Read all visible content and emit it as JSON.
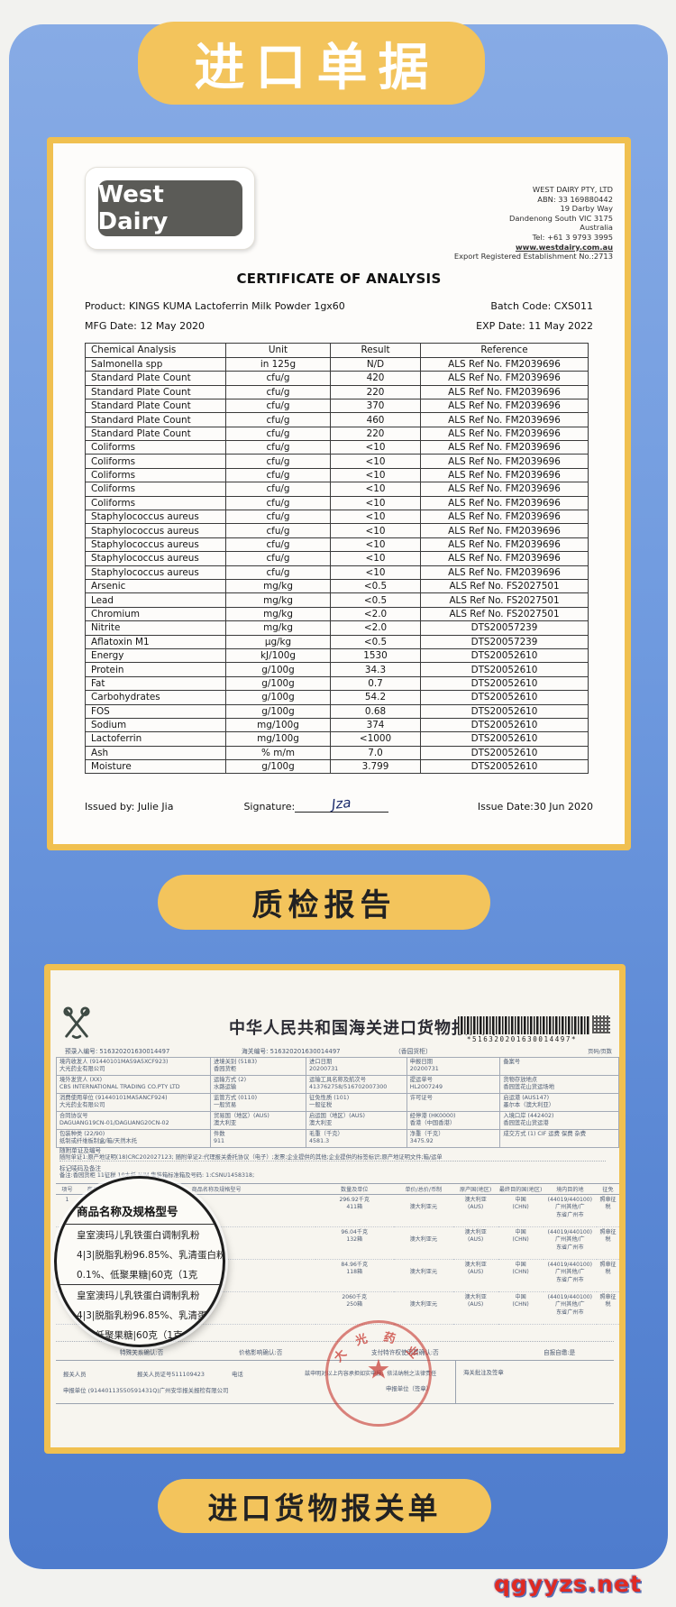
{
  "page": {
    "banner": "进口单据",
    "pill_quality": "质检报告",
    "pill_customs": "进口货物报关单",
    "watermark": "qgyyzs.net"
  },
  "certificate": {
    "logo_text": "West Dairy",
    "company": {
      "name": "WEST DAIRY PTY, LTD",
      "abn": "ABN: 33 169880442",
      "address1": "19 Darby Way",
      "address2": "Dandenong South VIC 3175",
      "address3": "Australia",
      "tel": "Tel: +61 3 9793 3995",
      "website": "www.westdairy.com.au",
      "export_reg": "Export Registered Establishment No.:2713"
    },
    "title": "CERTIFICATE OF ANALYSIS",
    "product": "Product: KINGS KUMA Lactoferrin Milk Powder 1gx60",
    "batch": "Batch Code: CXS011",
    "mfg": "MFG Date:  12 May 2020",
    "exp": "EXP Date: 11 May 2022",
    "table": {
      "headers": [
        "Chemical Analysis",
        "Unit",
        "Result",
        "Reference"
      ],
      "rows": [
        [
          "Salmonella spp",
          "in 125g",
          "N/D",
          "ALS Ref No. FM2039696"
        ],
        [
          "Standard Plate Count",
          "cfu/g",
          "420",
          "ALS Ref No. FM2039696"
        ],
        [
          "Standard Plate Count",
          "cfu/g",
          "220",
          "ALS Ref No. FM2039696"
        ],
        [
          "Standard Plate Count",
          "cfu/g",
          "370",
          "ALS Ref No. FM2039696"
        ],
        [
          "Standard Plate Count",
          "cfu/g",
          "460",
          "ALS Ref No. FM2039696"
        ],
        [
          "Standard Plate Count",
          "cfu/g",
          "220",
          "ALS Ref No. FM2039696"
        ],
        [
          "Coliforms",
          "cfu/g",
          "<10",
          "ALS Ref No. FM2039696"
        ],
        [
          "Coliforms",
          "cfu/g",
          "<10",
          "ALS Ref No. FM2039696"
        ],
        [
          "Coliforms",
          "cfu/g",
          "<10",
          "ALS Ref No. FM2039696"
        ],
        [
          "Coliforms",
          "cfu/g",
          "<10",
          "ALS Ref No. FM2039696"
        ],
        [
          "Coliforms",
          "cfu/g",
          "<10",
          "ALS Ref No. FM2039696"
        ],
        [
          "Staphylococcus aureus",
          "cfu/g",
          "<10",
          "ALS Ref No. FM2039696"
        ],
        [
          "Staphylococcus aureus",
          "cfu/g",
          "<10",
          "ALS Ref No. FM2039696"
        ],
        [
          "Staphylococcus aureus",
          "cfu/g",
          "<10",
          "ALS Ref No. FM2039696"
        ],
        [
          "Staphylococcus aureus",
          "cfu/g",
          "<10",
          "ALS Ref No. FM2039696"
        ],
        [
          "Staphylococcus aureus",
          "cfu/g",
          "<10",
          "ALS Ref No. FM2039696"
        ],
        [
          "Arsenic",
          "mg/kg",
          "<0.5",
          "ALS Ref No. FS2027501"
        ],
        [
          "Lead",
          "mg/kg",
          "<0.5",
          "ALS Ref No. FS2027501"
        ],
        [
          "Chromium",
          "mg/kg",
          "<2.0",
          "ALS Ref No. FS2027501"
        ],
        [
          "Nitrite",
          "mg/kg",
          "<2.0",
          "DTS20057239"
        ],
        [
          "Aflatoxin M1",
          "µg/kg",
          "<0.5",
          "DTS20057239"
        ],
        [
          "Energy",
          "kJ/100g",
          "1530",
          "DTS20052610"
        ],
        [
          "Protein",
          "g/100g",
          "34.3",
          "DTS20052610"
        ],
        [
          "Fat",
          "g/100g",
          "0.7",
          "DTS20052610"
        ],
        [
          "Carbohydrates",
          "g/100g",
          "54.2",
          "DTS20052610"
        ],
        [
          "FOS",
          "g/100g",
          "0.68",
          "DTS20052610"
        ],
        [
          "Sodium",
          "mg/100g",
          "374",
          "DTS20052610"
        ],
        [
          "Lactoferrin",
          "mg/100g",
          "<1000",
          "DTS20052610"
        ],
        [
          "Ash",
          "% m/m",
          "7.0",
          "DTS20052610"
        ],
        [
          "Moisture",
          "g/100g",
          "3.799",
          "DTS20052610"
        ]
      ]
    },
    "issued_by": "Issued by: Julie Jia",
    "signature_label": "Signature:",
    "signature_value": "Jza",
    "issue_date": "Issue Date:30 Jun 2020"
  },
  "customs": {
    "title": "中华人民共和国海关进口货物报关单",
    "barcode_text": "*516320201630014497*",
    "pre_entry": "预录入编号: 516320201630014497",
    "customs_no": "海关编号: 516320201630014497",
    "container_note": "（香园货柜）",
    "page_note": "页码/页数",
    "grid": [
      [
        "境内收发人 (91440101MA59A5XCF923)\n大光药业有限公司",
        "进境关别 (5183)\n香园货柜",
        "进口日期\n20200731",
        "申报日期\n20200731",
        "备案号\n"
      ],
      [
        "境外发货人 (XX)\nCBS INTERNATIONAL TRADING CO.PTY LTD",
        "运输方式 (2)\n水路运输",
        "运输工具名称及航次号\n413762758/516702007300",
        "提运单号\nHL2007249",
        "货物存放地点\n香园莲花山货运场地"
      ],
      [
        "消费使用单位 (91440101MA5ANCF924)\n大光药业有限公司",
        "监管方式 (0110)\n一般贸易",
        "征免性质 (101)\n一般征税",
        "许可证号\n",
        "启运港 (AUS147)\n墨尔本（澳大利亚）"
      ],
      [
        "合同协议号\nDAGUANG19CN-01/DAGUANG20CN-02",
        "贸易国（地区）(AUS)\n澳大利亚",
        "启运国（地区）(AUS)\n澳大利亚",
        "经停港 (HK0000)\n香港（中国香港）",
        "入境口岸 (442402)\n香园莲花山货运港"
      ],
      [
        "包装种类 (22/90)\n纸制或纤维板制盒/箱/天然木托",
        "件数\n911",
        "毛重（千克）\n4581.3",
        "净重（千克）\n3475.92",
        "成交方式 (1)  CIF    运费    保费    杂费"
      ]
    ],
    "attached_label": "随附单证及编号",
    "attached_line": "随附单证1:原产地证明(18)CRC202027123; 随附单证2:代理报关委托协议（电子）;发票;企业提供的其他;企业提供的标签标识;原产地证明文件;箱/运单",
    "marks_label": "标记唛码及备注",
    "marks_line": "备注:香园货柜 11征税 10木托 N/M  集装箱标准箱及号码: 1:CSNU1458318;",
    "items": {
      "headers": [
        "项号",
        "商品编号",
        "商品名称及规格型号",
        "数量及单位",
        "单价/总价/币制",
        "原产国(地区)",
        "最终目的国(地区)",
        "境内目的地",
        "征免"
      ],
      "rows": [
        [
          "1",
          "1901",
          "皇室澳玛儿乳铁蛋白调制乳粉\n4|3|脱脂乳粉2%、乳铁蛋白\n(1克",
          "296.92千克\n411箱",
          "\n澳大利亚元",
          "澳大利亚\n(AUS)",
          "中国\n(CHN)",
          "(44019/440100)广州其他/广\n东省广州市",
          "照章征税"
        ],
        [
          "2",
          "",
          "皇室澳玛儿乳铁蛋白调制乳粉\n4|3|脱脂乳粉2%、乳铁蛋白",
          "96.04千克\n132箱",
          "\n澳大利亚元",
          "澳大利亚\n(AUS)",
          "中国\n(CHN)",
          "(44019/440100)广州其他/广\n东省广州市",
          "照章征税"
        ],
        [
          "3",
          "",
          "皇室澳玛儿乳铁蛋白调制乳粉\n4|3|脱脂乳粉2%、乳铁蛋白",
          "84.96千克\n118箱",
          "\n澳大利亚元",
          "澳大利亚\n(AUS)",
          "中国\n(CHN)",
          "(44019/440100)广州其他/广\n东省广州市",
          "照章征税"
        ],
        [
          "4",
          "",
          "皇室澳玛儿乳铁蛋白调制乳粉\n4|3|脱脂乳粉0.2%、维生素A",
          "2060千克\n250箱",
          "\n澳大利亚元",
          "澳大利亚\n(AUS)",
          "中国\n(CHN)",
          "(44019/440100)广州其他/广\n东省广州市",
          "照章征税"
        ]
      ]
    },
    "magnifier": {
      "header": "商品名称及规格型号",
      "block1": [
        "皇室澳玛儿乳铁蛋白调制乳粉",
        "4|3|脱脂乳粉96.85%、乳清蛋白粉",
        "0.1%、低聚果糖|60克（1克"
      ],
      "block2": [
        "皇室澳玛儿乳铁蛋白调制乳粉",
        "4|3|脱脂乳粉96.85%、乳清蛋白",
        "%、低聚果糖|60克（1克"
      ]
    },
    "confirmations": [
      "特殊关系确认:否",
      "价格影响确认:否",
      "支付特许权使用费确认:否",
      "自报自缴:是"
    ],
    "declarant": {
      "agent_label": "报关人员",
      "agent_no": "报关人员证号511109423",
      "phone_label": "电话",
      "declaration": "兹申明对以上内容承担如实申报、依法纳税之法律责任",
      "sign_label": "申报单位（签章）",
      "customs_note_label": "海关批注及签章",
      "declaring_unit": "申报单位 (91440113550591431Q)广州安华报关报检有限公司"
    },
    "stamp": {
      "chars": [
        "大",
        "光",
        "药",
        "业"
      ],
      "star": "★"
    }
  }
}
